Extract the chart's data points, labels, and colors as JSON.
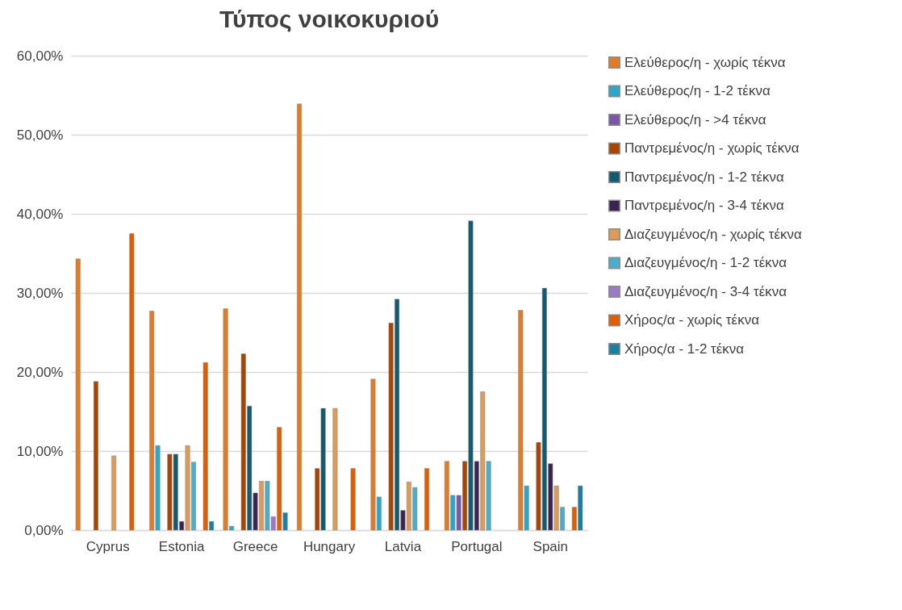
{
  "chart_data": {
    "type": "bar",
    "title": "Τύπος νοικοκυριού",
    "categories": [
      "Cyprus",
      "Estonia",
      "Greece",
      "Hungary",
      "Latvia",
      "Portugal",
      "Spain"
    ],
    "series": [
      {
        "name": "Ελεύθερος/η - χωρίς τέκνα",
        "color": "#e07b26",
        "values": [
          34.3,
          27.7,
          28.0,
          53.9,
          19.1,
          8.7,
          27.8
        ]
      },
      {
        "name": "Ελεύθερος/η - 1-2 τέκνα",
        "color": "#2aa7c9",
        "values": [
          null,
          10.7,
          0.5,
          null,
          4.2,
          4.4,
          5.6
        ]
      },
      {
        "name": "Ελεύθερος/η - >4 τέκνα",
        "color": "#7a55a8",
        "values": [
          null,
          null,
          null,
          null,
          null,
          4.4,
          null
        ]
      },
      {
        "name": "Παντρεμένος/η - χωρίς τέκνα",
        "color": "#a94503",
        "values": [
          18.8,
          9.6,
          22.3,
          7.8,
          26.2,
          8.7,
          11.1
        ]
      },
      {
        "name": "Παντρεμένος/η - 1-2 τέκνα",
        "color": "#135a6e",
        "values": [
          null,
          9.6,
          15.7,
          15.4,
          29.2,
          39.1,
          30.6
        ]
      },
      {
        "name": "Παντρεμένος/η - 3-4 τέκνα",
        "color": "#3b2454",
        "values": [
          null,
          1.1,
          4.7,
          null,
          2.5,
          8.7,
          8.4
        ]
      },
      {
        "name": "Διαζευγμένος/η - χωρίς τέκνα",
        "color": "#dc9b58",
        "values": [
          9.4,
          10.7,
          6.2,
          15.4,
          6.1,
          17.5,
          5.6
        ]
      },
      {
        "name": "Διαζευγμένος/η - 1-2 τέκνα",
        "color": "#4aaecb",
        "values": [
          null,
          8.6,
          6.2,
          null,
          5.4,
          8.7,
          2.9
        ]
      },
      {
        "name": "Διαζευγμένος/η - 3-4 τέκνα",
        "color": "#9b79c4",
        "values": [
          null,
          null,
          1.7,
          null,
          null,
          null,
          null
        ]
      },
      {
        "name": "Χήρος/α - χωρίς τέκνα",
        "color": "#e05e00",
        "values": [
          37.5,
          21.2,
          13.0,
          7.8,
          7.8,
          null,
          2.9
        ]
      },
      {
        "name": "Χήρος/α - 1-2 τέκνα",
        "color": "#1a7fa0",
        "values": [
          null,
          1.1,
          2.2,
          null,
          null,
          null,
          5.6
        ]
      }
    ],
    "ylim": [
      0,
      60
    ],
    "yticks": [
      {
        "value": 0,
        "label": "0,00%"
      },
      {
        "value": 10,
        "label": "10,00%"
      },
      {
        "value": 20,
        "label": "20,00%"
      },
      {
        "value": 30,
        "label": "30,00%"
      },
      {
        "value": 40,
        "label": "40,00%"
      },
      {
        "value": 50,
        "label": "50,00%"
      },
      {
        "value": 60,
        "label": "60,00%"
      }
    ],
    "grid": "y",
    "legend": "right"
  }
}
